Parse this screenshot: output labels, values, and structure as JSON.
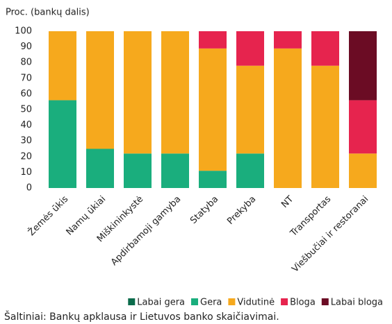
{
  "chart_data": {
    "type": "stacked_bar",
    "y_label": "Proc. (bankų dalis)",
    "categories": [
      "Žemės ūkis",
      "Namų ūkiai",
      "Miškininkystė",
      "Apdirbamoji gamyba",
      "Statyba",
      "Prekyba",
      "NT",
      "Transportas",
      "Viešbučiai ir restoranai"
    ],
    "series": [
      {
        "name": "Labai gera",
        "color": "#0b6b4b",
        "values": [
          0,
          0,
          0,
          0,
          0,
          0,
          0,
          0,
          0
        ]
      },
      {
        "name": "Gera",
        "color": "#1aae7d",
        "values": [
          56,
          25,
          22,
          22,
          11,
          22,
          0,
          0,
          0
        ]
      },
      {
        "name": "Vidutinė",
        "color": "#f6a91d",
        "values": [
          44,
          75,
          78,
          78,
          78,
          56,
          89,
          78,
          22
        ]
      },
      {
        "name": "Bloga",
        "color": "#e6244e",
        "values": [
          0,
          0,
          0,
          0,
          11,
          22,
          11,
          22,
          34
        ]
      },
      {
        "name": "Labai bloga",
        "color": "#6b0c24",
        "values": [
          0,
          0,
          0,
          0,
          0,
          0,
          0,
          0,
          44
        ]
      }
    ],
    "ylim": [
      0,
      100
    ],
    "yticks": [
      0,
      10,
      20,
      30,
      40,
      50,
      60,
      70,
      80,
      90,
      100
    ],
    "source": "Šaltiniai: Bankų apklausa ir Lietuvos banko skaičiavimai."
  }
}
